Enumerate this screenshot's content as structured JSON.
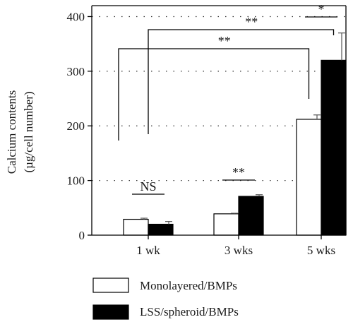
{
  "chart_data": {
    "type": "bar",
    "ylabel_lines": [
      "Calcium contents",
      "(µg/cell number)"
    ],
    "xlabel": "",
    "ylim": [
      0,
      420
    ],
    "yticks": [
      0,
      100,
      200,
      300,
      400
    ],
    "grid": "dotted horizontal at major y ticks",
    "categories": [
      "1 wk",
      "3 wks",
      "5 wks"
    ],
    "series": [
      {
        "name": "Monolayered/BMPs",
        "fill": "#ffffff",
        "values": [
          29,
          39,
          212
        ],
        "errors": [
          2,
          1,
          8
        ]
      },
      {
        "name": "LSS/spheroid/BMPs",
        "fill": "#000000",
        "values": [
          20,
          71,
          320
        ],
        "errors": [
          5,
          3,
          50
        ]
      }
    ],
    "annotations": [
      {
        "type": "bar",
        "category": 0,
        "label": "NS"
      },
      {
        "type": "bar",
        "category": 1,
        "label": "**"
      },
      {
        "type": "bar",
        "category": 2,
        "label": "*"
      },
      {
        "type": "bracket",
        "from_category": 0,
        "from_series": 0,
        "to_category": 2,
        "to_series": 0,
        "label": "**"
      },
      {
        "type": "bracket",
        "from_category": 0,
        "from_series": 1,
        "to_category": 2,
        "to_series": 1,
        "label": "**"
      }
    ],
    "legend_position": "bottom"
  }
}
